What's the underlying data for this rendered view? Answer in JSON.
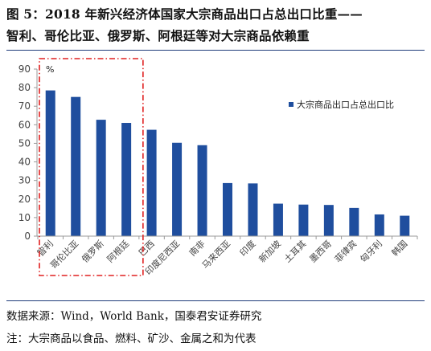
{
  "title": {
    "line1": "图 5：2018 年新兴经济体国家大宗商品出口占总出口比重——",
    "line2": "智利、哥伦比亚、俄罗斯、阿根廷等对大宗商品依赖重"
  },
  "footer": {
    "source": "数据来源：Wind，World Bank，国泰君安证券研究",
    "note": "注：大宗商品以食品、燃料、矿沙、金属之和为代表"
  },
  "chart_data": {
    "type": "bar",
    "title": "",
    "unit_label": "%",
    "xlabel": "",
    "ylabel": "",
    "ylim": [
      0,
      90
    ],
    "yticks": [
      0,
      10,
      20,
      30,
      40,
      50,
      60,
      70,
      80,
      90
    ],
    "categories": [
      "智利",
      "哥伦比亚",
      "俄罗斯",
      "阿根廷",
      "巴西",
      "印度尼西亚",
      "南非",
      "马来西亚",
      "印度",
      "新加坡",
      "土耳其",
      "墨西哥",
      "菲律宾",
      "匈牙利",
      "韩国"
    ],
    "series": [
      {
        "name": "大宗商品出口占总出口比",
        "values": [
          78.5,
          75,
          62.7,
          61,
          57.3,
          50.3,
          49,
          28.6,
          28.4,
          17.5,
          17,
          16.8,
          15.2,
          11.7,
          11
        ]
      }
    ],
    "bar_color": "#1f4e9e",
    "highlight": {
      "categories": [
        "智利",
        "哥伦比亚",
        "俄罗斯",
        "阿根廷"
      ],
      "style": "red dash-dot box",
      "color": "#e02020"
    },
    "legend": {
      "position": "right"
    },
    "grid": false
  }
}
